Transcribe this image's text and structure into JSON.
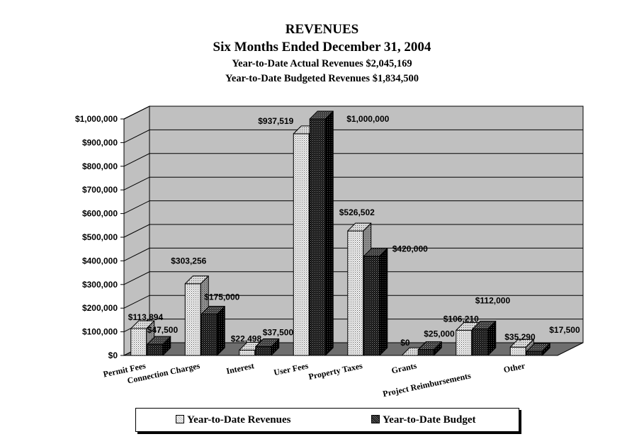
{
  "titles": {
    "main": "REVENUES",
    "period": "Six Months Ended December 31, 2004",
    "actual": "Year-to-Date Actual Revenues $2,045,169",
    "budgeted": "Year-to-Date Budgeted Revenues $1,834,500"
  },
  "colors": {
    "plot_bg": "#c0c0c0",
    "floor": "#6e6e6e",
    "revenue_fill": "#f0f0f0",
    "budget_fill": "#1a1a1a"
  },
  "legend": {
    "revenues": "Year-to-Date Revenues",
    "budget": "Year-to-Date Budget"
  },
  "chart_data": {
    "type": "bar",
    "title": "REVENUES",
    "ylim": [
      0,
      1000000
    ],
    "yticks": [
      "$0",
      "$100,000",
      "$200,000",
      "$300,000",
      "$400,000",
      "$500,000",
      "$600,000",
      "$700,000",
      "$800,000",
      "$900,000",
      "$1,000,000"
    ],
    "grid": true,
    "legend_position": "bottom",
    "categories": [
      "Permit Fees",
      "Connection Charges",
      "Interest",
      "User Fees",
      "Property Taxes",
      "Grants",
      "Project Reimbursements",
      "Other"
    ],
    "series": [
      {
        "name": "Year-to-Date Revenues",
        "values": [
          113894,
          303256,
          22498,
          937519,
          526502,
          0,
          106210,
          35290
        ],
        "labels": [
          "$113,894",
          "$303,256",
          "$22,498",
          "$937,519",
          "$526,502",
          "$0",
          "$106,210",
          "$35,290"
        ]
      },
      {
        "name": "Year-to-Date Budget",
        "values": [
          47500,
          175000,
          37500,
          1000000,
          420000,
          25000,
          112000,
          17500
        ],
        "labels": [
          "$47,500",
          "$175,000",
          "$37,500",
          "$1,000,000",
          "$420,000",
          "$25,000",
          "$112,000",
          "$17,500"
        ]
      }
    ]
  }
}
